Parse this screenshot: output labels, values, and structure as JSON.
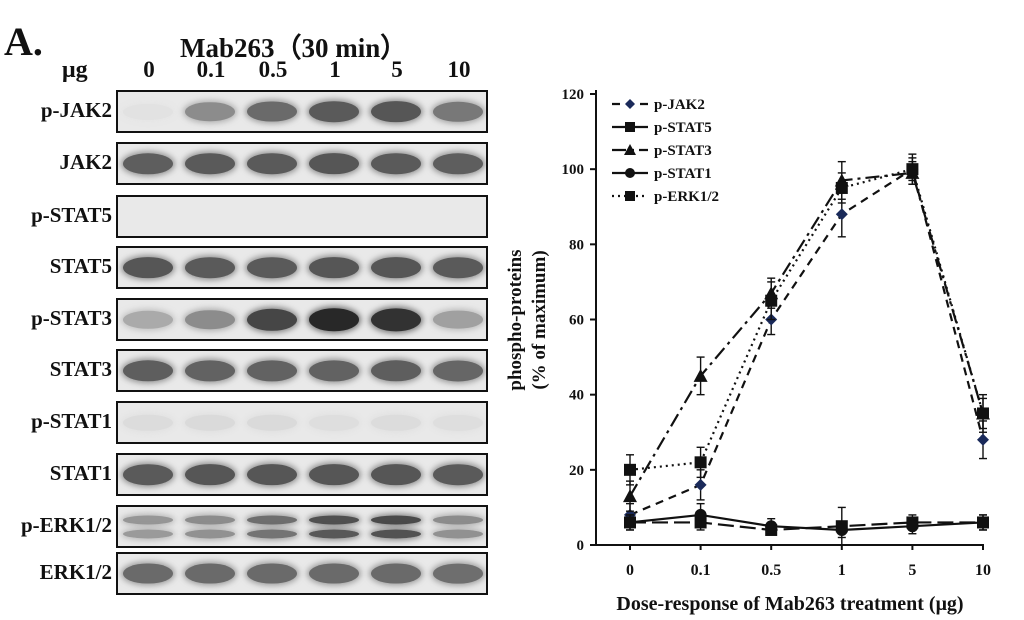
{
  "figure": {
    "panel_letter": "A.",
    "treatment": "Mab263（30 min）",
    "unit": "μg"
  },
  "blot": {
    "doses": [
      "0",
      "0.1",
      "0.5",
      "1",
      "5",
      "10"
    ],
    "rows": [
      {
        "label": "p-JAK2",
        "intensity": [
          0.02,
          0.45,
          0.62,
          0.7,
          0.72,
          0.55
        ],
        "double_band": false
      },
      {
        "label": "JAK2",
        "intensity": [
          0.68,
          0.7,
          0.7,
          0.72,
          0.7,
          0.68
        ],
        "double_band": false
      },
      {
        "label": "p-STAT5",
        "intensity": [
          0.0,
          0.0,
          0.0,
          0.0,
          0.0,
          0.0
        ],
        "double_band": false
      },
      {
        "label": "STAT5",
        "intensity": [
          0.72,
          0.7,
          0.7,
          0.72,
          0.72,
          0.7
        ],
        "double_band": false
      },
      {
        "label": "p-STAT3",
        "intensity": [
          0.3,
          0.45,
          0.8,
          0.95,
          0.9,
          0.35
        ],
        "double_band": false
      },
      {
        "label": "STAT3",
        "intensity": [
          0.68,
          0.66,
          0.66,
          0.66,
          0.68,
          0.64
        ],
        "double_band": false
      },
      {
        "label": "p-STAT1",
        "intensity": [
          0.05,
          0.06,
          0.06,
          0.04,
          0.05,
          0.04
        ],
        "double_band": false
      },
      {
        "label": "STAT1",
        "intensity": [
          0.7,
          0.72,
          0.72,
          0.72,
          0.72,
          0.7
        ],
        "double_band": false
      },
      {
        "label": "p-ERK1/2",
        "intensity": [
          0.4,
          0.45,
          0.6,
          0.75,
          0.78,
          0.45
        ],
        "double_band": true
      },
      {
        "label": "ERK1/2",
        "intensity": [
          0.62,
          0.62,
          0.62,
          0.62,
          0.62,
          0.6
        ],
        "double_band": false
      }
    ]
  },
  "chart_data": {
    "type": "line",
    "xlabel": "Dose-response of Mab263 treatment (μg)",
    "ylabel_line1": "phospho-proteins",
    "ylabel_line2": "(% of maximum)",
    "x_categories": [
      "0",
      "0.1",
      "0.5",
      "1",
      "5",
      "10"
    ],
    "ylim": [
      0,
      120
    ],
    "yticks": [
      0,
      20,
      40,
      60,
      80,
      100,
      120
    ],
    "grid": false,
    "legend_position": "top-left",
    "series": [
      {
        "name": "p-JAK2",
        "marker": "diamond",
        "dash": "8,6",
        "values": [
          8,
          16,
          60,
          88,
          100,
          28
        ],
        "errors": [
          3,
          4,
          4,
          6,
          3,
          5
        ]
      },
      {
        "name": "p-STAT5",
        "marker": "square",
        "dash": "16,6",
        "values": [
          6,
          6,
          4,
          5,
          6,
          6
        ],
        "errors": [
          2,
          2,
          1,
          5,
          2,
          2
        ]
      },
      {
        "name": "p-STAT3",
        "marker": "triangle",
        "dash": "14,5,3,5",
        "values": [
          13,
          45,
          67,
          97,
          99,
          35
        ],
        "errors": [
          4,
          5,
          4,
          5,
          3,
          5
        ]
      },
      {
        "name": "p-STAT1",
        "marker": "circle",
        "dash": "",
        "values": [
          6,
          8,
          5,
          4,
          5,
          6
        ],
        "errors": [
          2,
          3,
          2,
          2,
          2,
          2
        ]
      },
      {
        "name": "p-ERK1/2",
        "marker": "square",
        "dash": "2,4",
        "values": [
          20,
          22,
          65,
          95,
          100,
          35
        ],
        "errors": [
          4,
          4,
          5,
          4,
          4,
          4
        ]
      }
    ]
  }
}
